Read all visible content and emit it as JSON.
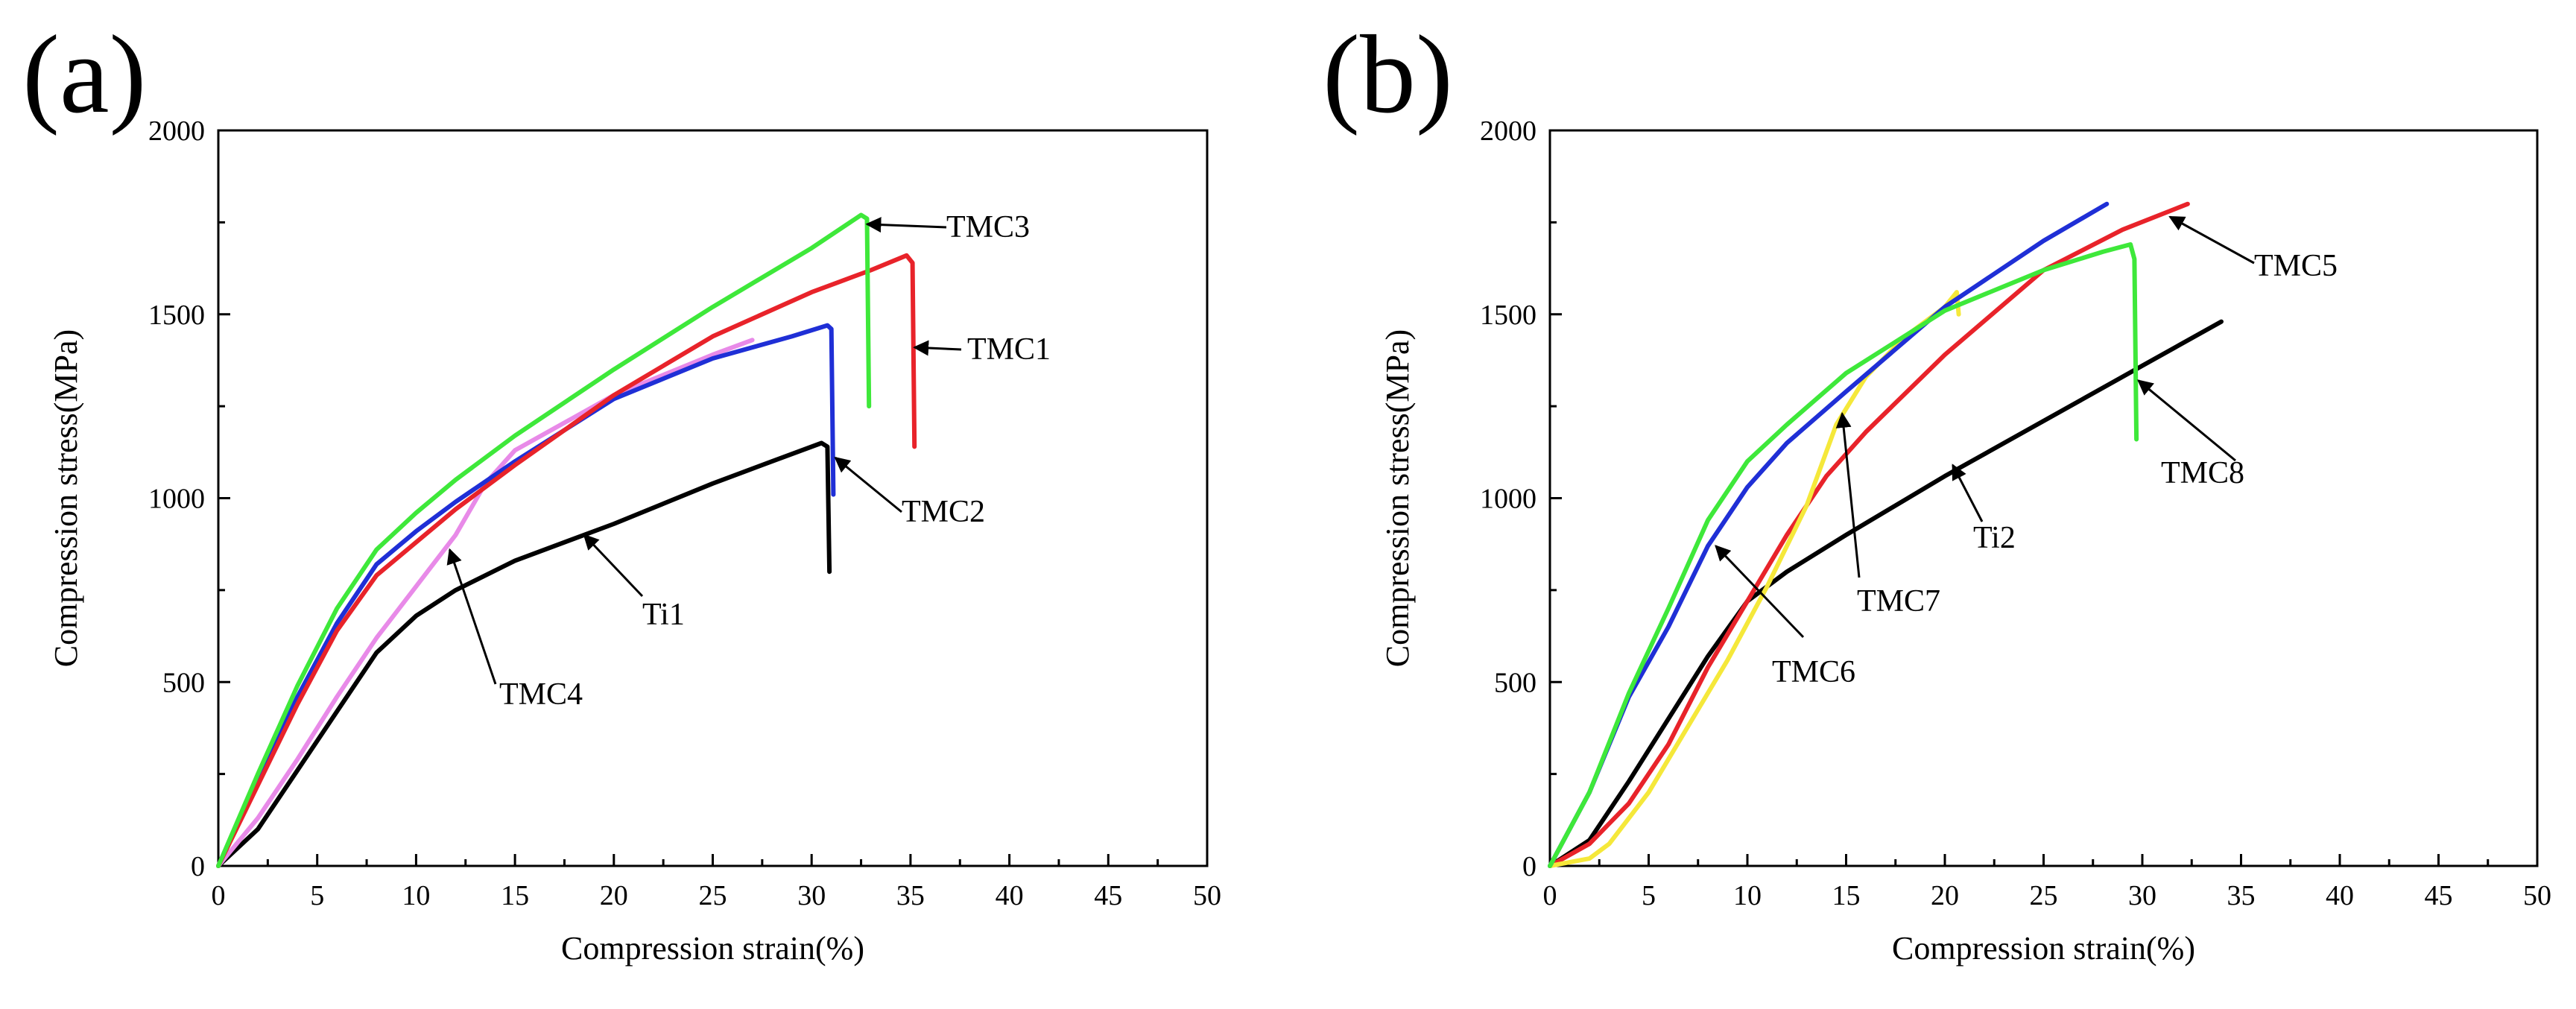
{
  "colors": {
    "black": "#000000",
    "red": "#e8232a",
    "blue": "#1f2fd6",
    "green": "#3ee83a",
    "pink": "#e88ae8",
    "yellow": "#f5e83a"
  },
  "chart_data": [
    {
      "type": "line",
      "panel_label": "(a)",
      "xlabel": "Compression strain(%)",
      "ylabel": "Compression stress(MPa)",
      "xlim": [
        0,
        50
      ],
      "ylim": [
        0,
        2000
      ],
      "xticks": [
        0,
        5,
        10,
        15,
        20,
        25,
        30,
        35,
        40,
        45,
        50
      ],
      "yticks": [
        0,
        500,
        1000,
        1500,
        2000
      ],
      "grid": false,
      "series": [
        {
          "name": "Ti1",
          "color": "black",
          "points": [
            [
              0,
              0
            ],
            [
              2,
              100
            ],
            [
              4,
              260
            ],
            [
              6,
              420
            ],
            [
              8,
              580
            ],
            [
              10,
              680
            ],
            [
              12,
              750
            ],
            [
              15,
              830
            ],
            [
              20,
              930
            ],
            [
              25,
              1040
            ],
            [
              28,
              1100
            ],
            [
              30.5,
              1150
            ],
            [
              30.8,
              1140
            ],
            [
              30.9,
              800
            ]
          ]
        },
        {
          "name": "TMC4",
          "color": "pink",
          "points": [
            [
              0,
              0
            ],
            [
              2,
              130
            ],
            [
              4,
              290
            ],
            [
              6,
              460
            ],
            [
              8,
              620
            ],
            [
              10,
              760
            ],
            [
              12,
              900
            ],
            [
              13.5,
              1040
            ],
            [
              15,
              1130
            ],
            [
              20,
              1280
            ],
            [
              25,
              1390
            ],
            [
              27,
              1430
            ]
          ]
        },
        {
          "name": "TMC2",
          "color": "blue",
          "points": [
            [
              0,
              0
            ],
            [
              2,
              230
            ],
            [
              4,
              460
            ],
            [
              6,
              660
            ],
            [
              8,
              820
            ],
            [
              10,
              910
            ],
            [
              12,
              990
            ],
            [
              15,
              1100
            ],
            [
              20,
              1270
            ],
            [
              25,
              1380
            ],
            [
              29,
              1440
            ],
            [
              30.8,
              1470
            ],
            [
              31,
              1460
            ],
            [
              31.1,
              1010
            ]
          ]
        },
        {
          "name": "TMC1",
          "color": "red",
          "points": [
            [
              0,
              0
            ],
            [
              2,
              220
            ],
            [
              4,
              440
            ],
            [
              6,
              640
            ],
            [
              8,
              790
            ],
            [
              10,
              880
            ],
            [
              12,
              970
            ],
            [
              15,
              1090
            ],
            [
              20,
              1280
            ],
            [
              25,
              1440
            ],
            [
              30,
              1560
            ],
            [
              33,
              1620
            ],
            [
              34.8,
              1660
            ],
            [
              35.1,
              1640
            ],
            [
              35.2,
              1140
            ]
          ]
        },
        {
          "name": "TMC3",
          "color": "green",
          "points": [
            [
              0,
              0
            ],
            [
              2,
              250
            ],
            [
              4,
              490
            ],
            [
              6,
              700
            ],
            [
              8,
              860
            ],
            [
              10,
              960
            ],
            [
              12,
              1050
            ],
            [
              15,
              1170
            ],
            [
              20,
              1350
            ],
            [
              25,
              1520
            ],
            [
              30,
              1680
            ],
            [
              32.5,
              1770
            ],
            [
              32.8,
              1760
            ],
            [
              32.9,
              1250
            ]
          ]
        }
      ],
      "annotations": [
        {
          "text": "TMC3",
          "target": [
            32.8,
            1745
          ]
        },
        {
          "text": "TMC1",
          "target": [
            35.2,
            1410
          ]
        },
        {
          "text": "TMC2",
          "target": [
            31.2,
            1110
          ]
        },
        {
          "text": "Ti1",
          "target": [
            18.5,
            900
          ]
        },
        {
          "text": "TMC4",
          "target": [
            11.7,
            860
          ]
        }
      ]
    },
    {
      "type": "line",
      "panel_label": "(b)",
      "xlabel": "Compression strain(%)",
      "ylabel": "Compression stress(MPa)",
      "xlim": [
        0,
        50
      ],
      "ylim": [
        0,
        2000
      ],
      "xticks": [
        0,
        5,
        10,
        15,
        20,
        25,
        30,
        35,
        40,
        45,
        50
      ],
      "yticks": [
        0,
        500,
        1000,
        1500,
        2000
      ],
      "grid": false,
      "series": [
        {
          "name": "Ti2",
          "color": "black",
          "points": [
            [
              0,
              0
            ],
            [
              2,
              70
            ],
            [
              4,
              230
            ],
            [
              6,
              400
            ],
            [
              8,
              570
            ],
            [
              10,
              720
            ],
            [
              12,
              800
            ],
            [
              15,
              900
            ],
            [
              20,
              1060
            ],
            [
              25,
              1210
            ],
            [
              30,
              1360
            ],
            [
              34,
              1480
            ]
          ]
        },
        {
          "name": "TMC5",
          "color": "red",
          "points": [
            [
              0,
              0
            ],
            [
              2,
              60
            ],
            [
              4,
              170
            ],
            [
              6,
              330
            ],
            [
              8,
              540
            ],
            [
              10,
              720
            ],
            [
              12,
              900
            ],
            [
              14,
              1060
            ],
            [
              16,
              1180
            ],
            [
              20,
              1390
            ],
            [
              25,
              1620
            ],
            [
              29,
              1730
            ],
            [
              32.3,
              1800
            ]
          ]
        },
        {
          "name": "TMC7",
          "color": "yellow",
          "points": [
            [
              0,
              0
            ],
            [
              2,
              20
            ],
            [
              3,
              60
            ],
            [
              5,
              200
            ],
            [
              7,
              380
            ],
            [
              9,
              560
            ],
            [
              11,
              760
            ],
            [
              13,
              980
            ],
            [
              14.5,
              1200
            ],
            [
              16,
              1330
            ],
            [
              18,
              1440
            ],
            [
              20,
              1520
            ],
            [
              20.6,
              1560
            ],
            [
              20.7,
              1500
            ]
          ]
        },
        {
          "name": "TMC6",
          "color": "blue",
          "points": [
            [
              0,
              0
            ],
            [
              2,
              200
            ],
            [
              4,
              460
            ],
            [
              6,
              650
            ],
            [
              8,
              870
            ],
            [
              10,
              1030
            ],
            [
              12,
              1150
            ],
            [
              15,
              1290
            ],
            [
              20,
              1520
            ],
            [
              25,
              1700
            ],
            [
              28.2,
              1800
            ]
          ]
        },
        {
          "name": "TMC8",
          "color": "green",
          "points": [
            [
              0,
              0
            ],
            [
              2,
              200
            ],
            [
              4,
              470
            ],
            [
              6,
              700
            ],
            [
              8,
              940
            ],
            [
              10,
              1100
            ],
            [
              12,
              1200
            ],
            [
              15,
              1340
            ],
            [
              20,
              1510
            ],
            [
              25,
              1620
            ],
            [
              28,
              1670
            ],
            [
              29.4,
              1690
            ],
            [
              29.6,
              1650
            ],
            [
              29.7,
              1160
            ]
          ]
        }
      ],
      "annotations": [
        {
          "text": "TMC5",
          "target": [
            31.4,
            1765
          ]
        },
        {
          "text": "TMC8",
          "target": [
            29.8,
            1320
          ]
        },
        {
          "text": "Ti2",
          "target": [
            20.4,
            1090
          ]
        },
        {
          "text": "TMC7",
          "target": [
            14.8,
            1230
          ]
        },
        {
          "text": "TMC6",
          "target": [
            8.4,
            870
          ]
        }
      ]
    }
  ]
}
